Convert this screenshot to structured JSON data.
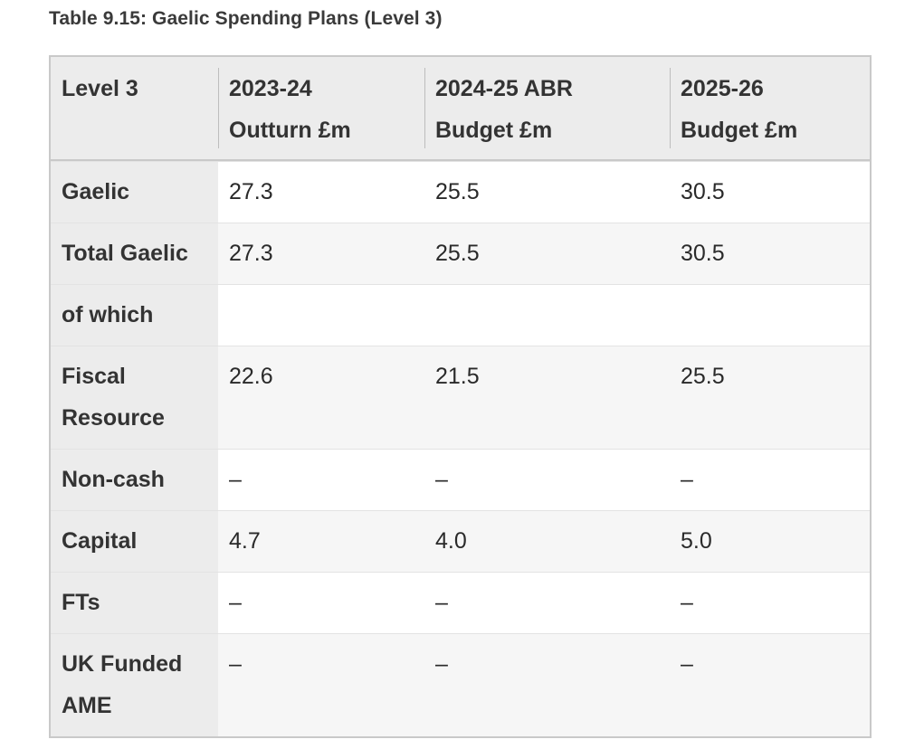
{
  "caption": "Table 9.15: Gaelic Spending Plans (Level 3)",
  "table": {
    "headers": [
      [
        "Level 3"
      ],
      [
        "2023-24",
        "Outturn £m"
      ],
      [
        "2024-25 ABR",
        "Budget £m"
      ],
      [
        "2025-26",
        "Budget £m"
      ]
    ],
    "rows": [
      {
        "label": [
          "Gaelic"
        ],
        "values": [
          "27.3",
          "25.5",
          "30.5"
        ]
      },
      {
        "label": [
          "Total Gaelic"
        ],
        "values": [
          "27.3",
          "25.5",
          "30.5"
        ]
      },
      {
        "label": [
          "of which"
        ],
        "values": [
          "",
          "",
          ""
        ]
      },
      {
        "label": [
          "Fiscal",
          "Resource"
        ],
        "values": [
          "22.6",
          "21.5",
          "25.5"
        ]
      },
      {
        "label": [
          "Non-cash"
        ],
        "values": [
          "–",
          "–",
          "–"
        ]
      },
      {
        "label": [
          "Capital"
        ],
        "values": [
          "4.7",
          "4.0",
          "5.0"
        ]
      },
      {
        "label": [
          "FTs"
        ],
        "values": [
          "–",
          "–",
          "–"
        ]
      },
      {
        "label": [
          "UK Funded",
          "AME"
        ],
        "values": [
          "–",
          "–",
          "–"
        ]
      }
    ]
  }
}
